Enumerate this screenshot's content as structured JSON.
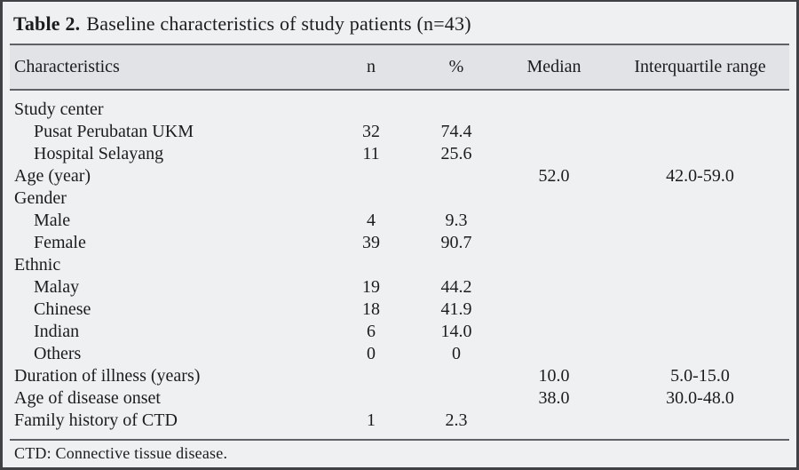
{
  "title": {
    "bold": "Table 2.",
    "text": "Baseline characteristics of study patients (n=43)"
  },
  "columns": [
    "Characteristics",
    "n",
    "%",
    "Median",
    "Interquartile range"
  ],
  "rows": [
    {
      "label": "Study center",
      "indent": 0,
      "n": "",
      "pct": "",
      "median": "",
      "iqr": ""
    },
    {
      "label": "Pusat Perubatan UKM",
      "indent": 1,
      "n": "32",
      "pct": "74.4",
      "median": "",
      "iqr": ""
    },
    {
      "label": "Hospital Selayang",
      "indent": 1,
      "n": "11",
      "pct": "25.6",
      "median": "",
      "iqr": ""
    },
    {
      "label": "Age (year)",
      "indent": 0,
      "n": "",
      "pct": "",
      "median": "52.0",
      "iqr": "42.0-59.0"
    },
    {
      "label": "Gender",
      "indent": 0,
      "n": "",
      "pct": "",
      "median": "",
      "iqr": ""
    },
    {
      "label": "Male",
      "indent": 1,
      "n": "4",
      "pct": "9.3",
      "median": "",
      "iqr": ""
    },
    {
      "label": "Female",
      "indent": 1,
      "n": "39",
      "pct": "90.7",
      "median": "",
      "iqr": ""
    },
    {
      "label": "Ethnic",
      "indent": 0,
      "n": "",
      "pct": "",
      "median": "",
      "iqr": ""
    },
    {
      "label": "Malay",
      "indent": 1,
      "n": "19",
      "pct": "44.2",
      "median": "",
      "iqr": ""
    },
    {
      "label": "Chinese",
      "indent": 1,
      "n": "18",
      "pct": "41.9",
      "median": "",
      "iqr": ""
    },
    {
      "label": "Indian",
      "indent": 1,
      "n": "6",
      "pct": "14.0",
      "median": "",
      "iqr": ""
    },
    {
      "label": "Others",
      "indent": 1,
      "n": "0",
      "pct": "0",
      "median": "",
      "iqr": ""
    },
    {
      "label": "Duration of illness (years)",
      "indent": 0,
      "n": "",
      "pct": "",
      "median": "10.0",
      "iqr": "5.0-15.0"
    },
    {
      "label": "Age of disease onset",
      "indent": 0,
      "n": "",
      "pct": "",
      "median": "38.0",
      "iqr": "30.0-48.0"
    },
    {
      "label": "Family history of CTD",
      "indent": 0,
      "n": "1",
      "pct": "2.3",
      "median": "",
      "iqr": ""
    }
  ],
  "footnote": "CTD: Connective tissue disease.",
  "colors": {
    "body_background": "#eff0f2",
    "header_band": "#e2e3e6",
    "rule": "#5f6166",
    "outer_border": "#3f4144",
    "text": "#1b1c1e"
  }
}
